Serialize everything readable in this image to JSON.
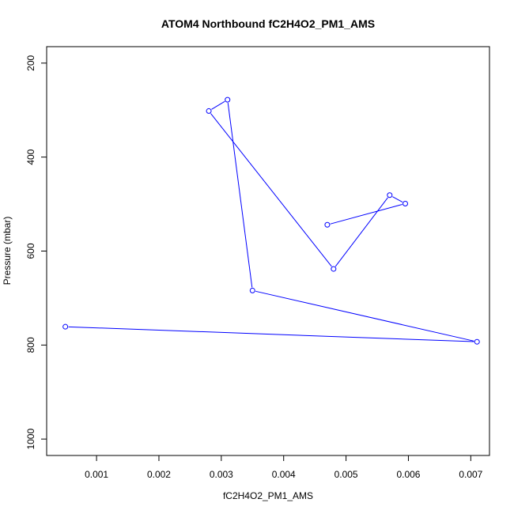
{
  "chart_data": {
    "type": "line",
    "title": "ATOM4 Northbound fC2H4O2_PM1_AMS",
    "xlabel": "fC2H4O2_PM1_AMS",
    "ylabel": "Pressure (mbar)",
    "xlim": [
      0.0002,
      0.0073
    ],
    "ylim": [
      1035,
      165
    ],
    "y_reversed": true,
    "x_ticks": [
      "0.001",
      "0.002",
      "0.003",
      "0.004",
      "0.005",
      "0.006",
      "0.007"
    ],
    "y_ticks": [
      "200",
      "400",
      "600",
      "800",
      "1000"
    ],
    "grid": false,
    "series": [
      {
        "color": "#0000ff",
        "markers": "open-circle",
        "points": [
          {
            "x": 0.0047,
            "y": 544
          },
          {
            "x": 0.00595,
            "y": 499
          },
          {
            "x": 0.0057,
            "y": 481
          },
          {
            "x": 0.0048,
            "y": 638
          },
          {
            "x": 0.0028,
            "y": 302
          },
          {
            "x": 0.0031,
            "y": 278
          },
          {
            "x": 0.0035,
            "y": 684
          },
          {
            "x": 0.0071,
            "y": 793
          },
          {
            "x": 0.0005,
            "y": 761
          }
        ]
      }
    ]
  }
}
